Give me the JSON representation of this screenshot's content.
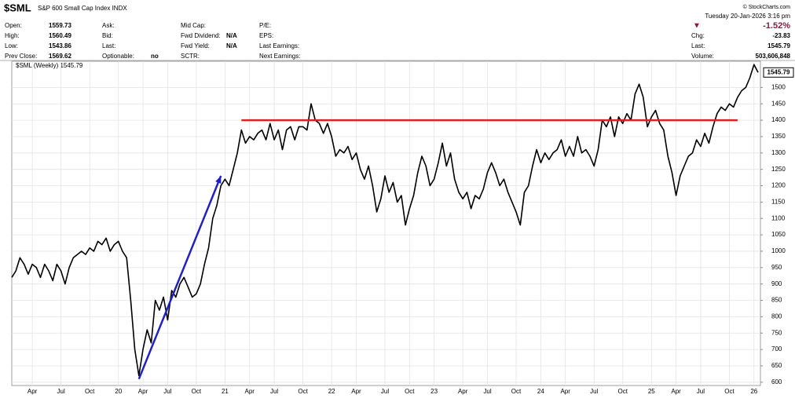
{
  "header": {
    "symbol": "$SML",
    "name": "S&P 600 Small Cap Index INDX",
    "credit": "© StockCharts.com",
    "date": "Tuesday 20-Jan-2026 3:16 pm",
    "change_arrow": "▼",
    "change_pct": "-1.52%",
    "columns": [
      [
        [
          "Open:",
          "1559.73"
        ],
        [
          "High:",
          "1560.49"
        ],
        [
          "Low:",
          "1543.86"
        ],
        [
          "Prev Close:",
          "1569.62"
        ]
      ],
      [
        [
          "Ask:"
        ],
        [
          "Bid:"
        ],
        [
          "Last:"
        ],
        [
          "Optionable:",
          "no"
        ]
      ],
      [
        [
          "Mid Cap:"
        ],
        [
          "Fwd Dividend:",
          "N/A"
        ],
        [
          "Fwd Yield:",
          "N/A"
        ],
        [
          "SCTR:"
        ]
      ],
      [
        [
          "P/E:"
        ],
        [
          "EPS:"
        ],
        [
          "Last Earnings:"
        ],
        [
          "Next Earnings:"
        ]
      ]
    ],
    "right": [
      [
        "Chg:",
        "-23.83"
      ],
      [
        "Last:",
        "1545.79"
      ],
      [
        "Volume:",
        "503,606,848"
      ]
    ]
  },
  "chart_data": {
    "type": "line",
    "categories": [
      null,
      null,
      null,
      null,
      null,
      "Apr",
      null,
      null,
      null,
      null,
      null,
      null,
      "Jul",
      null,
      null,
      null,
      null,
      null,
      null,
      "Oct",
      null,
      null,
      null,
      null,
      null,
      null,
      "20",
      null,
      null,
      null,
      null,
      null,
      "Apr",
      null,
      null,
      null,
      null,
      null,
      "Jul",
      null,
      null,
      null,
      null,
      null,
      null,
      "Oct",
      null,
      null,
      null,
      null,
      null,
      null,
      "21",
      null,
      null,
      null,
      null,
      null,
      "Apr",
      null,
      null,
      null,
      null,
      null,
      "Jul",
      null,
      null,
      null,
      null,
      null,
      null,
      "Oct",
      null,
      null,
      null,
      null,
      null,
      null,
      "22",
      null,
      null,
      null,
      null,
      null,
      "Apr",
      null,
      null,
      null,
      null,
      null,
      null,
      "Jul",
      null,
      null,
      null,
      null,
      null,
      "Oct",
      null,
      null,
      null,
      null,
      null,
      "23",
      null,
      null,
      null,
      null,
      null,
      null,
      "Apr",
      null,
      null,
      null,
      null,
      null,
      "Jul",
      null,
      null,
      null,
      null,
      null,
      null,
      "Oct",
      null,
      null,
      null,
      null,
      null,
      "24",
      null,
      null,
      null,
      null,
      null,
      "Apr",
      null,
      null,
      null,
      null,
      null,
      null,
      "Jul",
      null,
      null,
      null,
      null,
      null,
      null,
      "Oct",
      null,
      null,
      null,
      null,
      null,
      null,
      "25",
      null,
      null,
      null,
      null,
      null,
      "Apr",
      null,
      null,
      null,
      null,
      null,
      "Jul",
      null,
      null,
      null,
      null,
      null,
      null,
      "Oct",
      null,
      null,
      null,
      null,
      null,
      "26",
      null
    ],
    "series": [
      {
        "name": "$SML (Weekly) 1545.79",
        "color": "#000000",
        "values": [
          920,
          940,
          980,
          960,
          930,
          960,
          950,
          920,
          960,
          940,
          910,
          960,
          940,
          900,
          950,
          980,
          990,
          1000,
          990,
          1010,
          1000,
          1030,
          1020,
          1040,
          1000,
          1020,
          1030,
          1000,
          980,
          850,
          700,
          620,
          700,
          760,
          720,
          850,
          820,
          860,
          790,
          880,
          860,
          900,
          920,
          890,
          860,
          870,
          900,
          960,
          1010,
          1100,
          1140,
          1200,
          1220,
          1200,
          1250,
          1300,
          1370,
          1330,
          1350,
          1340,
          1360,
          1370,
          1340,
          1390,
          1340,
          1370,
          1310,
          1370,
          1380,
          1340,
          1380,
          1380,
          1370,
          1450,
          1400,
          1390,
          1360,
          1390,
          1350,
          1290,
          1310,
          1300,
          1320,
          1280,
          1300,
          1250,
          1220,
          1260,
          1200,
          1120,
          1160,
          1230,
          1180,
          1210,
          1150,
          1170,
          1080,
          1130,
          1170,
          1240,
          1290,
          1260,
          1200,
          1220,
          1270,
          1330,
          1260,
          1300,
          1220,
          1180,
          1160,
          1180,
          1130,
          1170,
          1160,
          1190,
          1240,
          1270,
          1240,
          1200,
          1220,
          1180,
          1150,
          1120,
          1080,
          1180,
          1200,
          1260,
          1310,
          1270,
          1300,
          1280,
          1300,
          1310,
          1340,
          1290,
          1320,
          1290,
          1350,
          1300,
          1310,
          1290,
          1260,
          1310,
          1400,
          1380,
          1410,
          1350,
          1410,
          1390,
          1420,
          1400,
          1480,
          1510,
          1470,
          1380,
          1410,
          1430,
          1390,
          1370,
          1290,
          1240,
          1170,
          1230,
          1260,
          1290,
          1300,
          1340,
          1320,
          1360,
          1330,
          1380,
          1420,
          1440,
          1430,
          1450,
          1440,
          1470,
          1490,
          1500,
          1530,
          1570,
          1546
        ]
      }
    ],
    "price_tag": {
      "value": 1545.79,
      "label": "1545.79"
    },
    "trendlines": [
      {
        "color": "#e02020",
        "from": [
          56,
          1400
        ],
        "to": [
          177,
          1400
        ]
      },
      {
        "color": "#2020c8",
        "from": [
          31,
          610
        ],
        "to": [
          51,
          1230
        ],
        "arrow": true
      }
    ],
    "ylim": [
      590,
      1580
    ],
    "yticks": [
      600,
      650,
      700,
      750,
      800,
      850,
      900,
      950,
      1000,
      1050,
      1100,
      1150,
      1200,
      1250,
      1300,
      1350,
      1400,
      1450,
      1500
    ],
    "grid": true
  }
}
